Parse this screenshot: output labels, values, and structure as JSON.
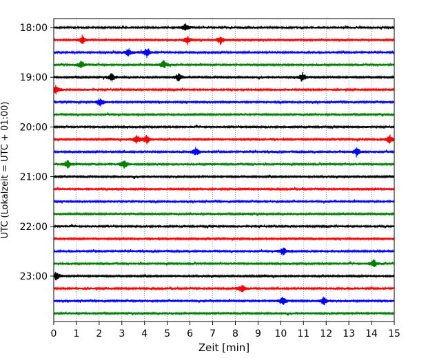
{
  "chart_data": {
    "type": "line",
    "title": "",
    "xlabel": "Zeit  [min]",
    "ylabel": "UTC (Lokalzeit = UTC + 01:00)",
    "xlim": [
      0,
      15
    ],
    "x_ticks": [
      0,
      1,
      2,
      3,
      4,
      5,
      6,
      7,
      8,
      9,
      10,
      11,
      12,
      13,
      14,
      15
    ],
    "x_tick_labels": [
      "0",
      "1",
      "2",
      "3",
      "4",
      "5",
      "6",
      "7",
      "8",
      "9",
      "10",
      "11",
      "12",
      "13",
      "14",
      "15"
    ],
    "y_tick_labels": [
      "18:00",
      "19:00",
      "20:00",
      "21:00",
      "22:00",
      "23:00"
    ],
    "row_minutes": 15,
    "grid": {
      "x": true,
      "y": false,
      "style": "dotted"
    },
    "trace_colors": [
      "#000000",
      "#ff0000",
      "#0000ff",
      "#008000"
    ],
    "series": [
      {
        "start": "18:00",
        "events": [
          5.8
        ]
      },
      {
        "start": "18:15",
        "events": [
          1.25,
          5.9,
          7.35
        ]
      },
      {
        "start": "18:30",
        "events": [
          3.3,
          4.1
        ]
      },
      {
        "start": "18:45",
        "events": [
          1.2,
          4.85
        ]
      },
      {
        "start": "19:00",
        "events": [
          2.55,
          5.5,
          10.95
        ]
      },
      {
        "start": "19:15",
        "events": [
          0.1
        ]
      },
      {
        "start": "19:30",
        "events": [
          2.05
        ]
      },
      {
        "start": "19:45",
        "events": []
      },
      {
        "start": "20:00",
        "events": []
      },
      {
        "start": "20:15",
        "events": [
          3.65,
          4.1,
          14.8
        ]
      },
      {
        "start": "20:30",
        "events": [
          6.25,
          13.35
        ]
      },
      {
        "start": "20:45",
        "events": [
          0.6,
          3.1
        ]
      },
      {
        "start": "21:00",
        "events": []
      },
      {
        "start": "21:15",
        "events": []
      },
      {
        "start": "21:30",
        "events": []
      },
      {
        "start": "21:45",
        "events": []
      },
      {
        "start": "22:00",
        "events": []
      },
      {
        "start": "22:15",
        "events": []
      },
      {
        "start": "22:30",
        "events": [
          10.1
        ]
      },
      {
        "start": "22:45",
        "events": [
          14.1
        ]
      },
      {
        "start": "23:00",
        "events": [
          0.12
        ]
      },
      {
        "start": "23:15",
        "events": [
          8.3
        ]
      },
      {
        "start": "23:30",
        "events": [
          10.1,
          11.9
        ]
      },
      {
        "start": "23:45",
        "events": []
      }
    ]
  }
}
